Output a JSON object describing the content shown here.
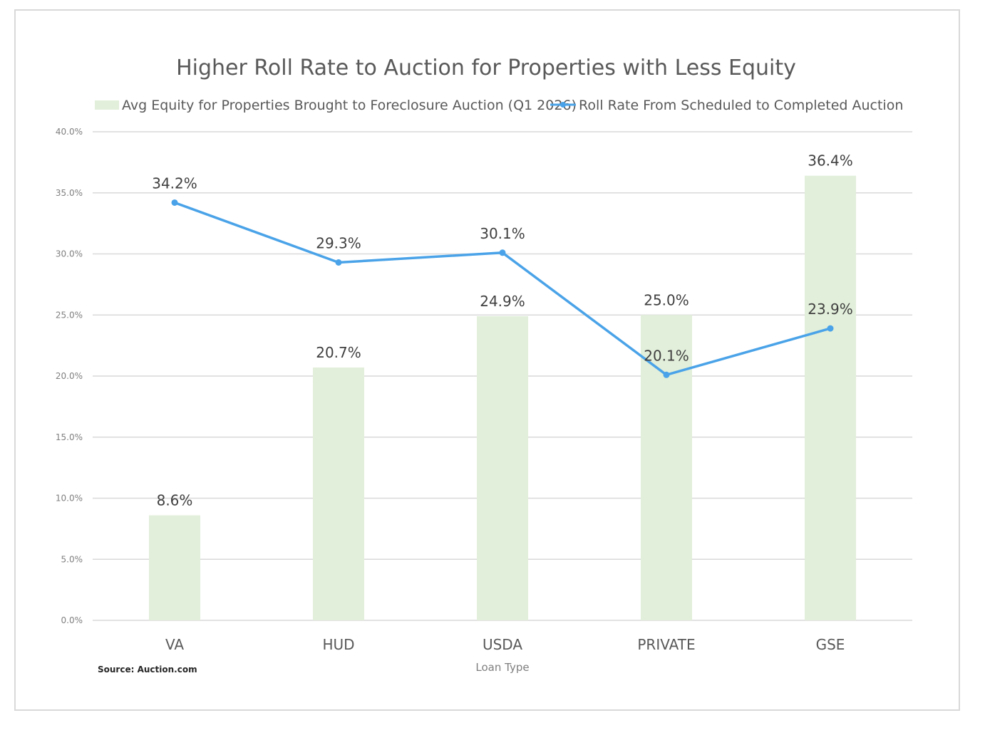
{
  "chart_data": {
    "type": "bar",
    "combo": "bar+line",
    "title": "Higher Roll Rate to Auction for Properties with Less Equity",
    "categories": [
      "VA",
      "HUD",
      "USDA",
      "PRIVATE",
      "GSE"
    ],
    "series": [
      {
        "name": "Avg Equity for Properties Brought to Foreclosure Auction (Q1 2026)",
        "type": "bar",
        "color": "#e2efda",
        "values": [
          8.6,
          20.7,
          24.9,
          25.0,
          36.4
        ],
        "labels": [
          "8.6%",
          "20.7%",
          "24.9%",
          "25.0%",
          "36.4%"
        ]
      },
      {
        "name": "Roll Rate From Scheduled to Completed Auction",
        "type": "line",
        "color": "#4aa3e8",
        "values": [
          34.2,
          29.3,
          30.1,
          20.1,
          23.9
        ],
        "labels": [
          "34.2%",
          "29.3%",
          "30.1%",
          "20.1%",
          "23.9%"
        ]
      }
    ],
    "xlabel": "Loan Type",
    "ylabel": "",
    "ylim": [
      0,
      40
    ],
    "yticks": [
      0,
      5,
      10,
      15,
      20,
      25,
      30,
      35,
      40
    ],
    "ytick_labels": [
      "0.0%",
      "5.0%",
      "10.0%",
      "15.0%",
      "20.0%",
      "25.0%",
      "30.0%",
      "35.0%",
      "40.0%"
    ],
    "grid": true,
    "legend": "top",
    "source": "Source: Auction.com"
  }
}
